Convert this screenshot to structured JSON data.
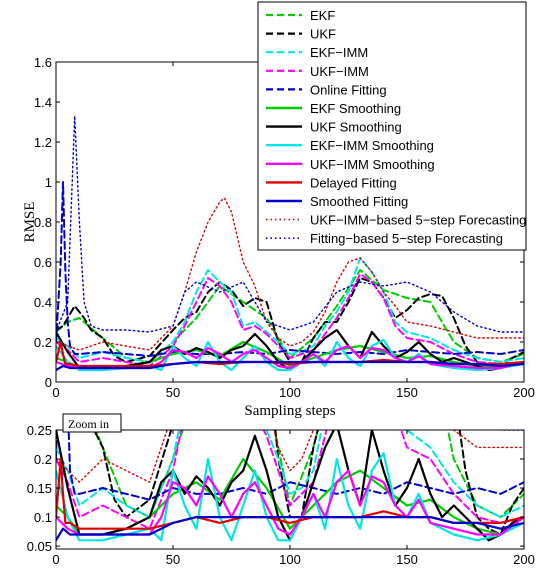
{
  "chart_data": [
    {
      "type": "line",
      "xlabel": "Sampling steps",
      "ylabel": "RMSE",
      "xlim": [
        0,
        200
      ],
      "ylim": [
        0,
        1.6
      ],
      "xticks": [
        "0",
        "50",
        "100",
        "150",
        "200"
      ],
      "yticks": [
        "0",
        "0.2",
        "0.4",
        "0.6",
        "0.8",
        "1",
        "1.2",
        "1.4",
        "1.6"
      ],
      "grid": false,
      "legend_position": "top-right",
      "series": [
        {
          "name": "EKF",
          "color": "#00cc00",
          "dash": "dashed",
          "x": [
            0,
            5,
            10,
            20,
            30,
            40,
            50,
            60,
            70,
            80,
            90,
            100,
            110,
            120,
            130,
            140,
            150,
            160,
            170,
            180,
            190,
            200
          ],
          "y": [
            0.25,
            0.3,
            0.32,
            0.22,
            0.12,
            0.1,
            0.2,
            0.32,
            0.48,
            0.4,
            0.32,
            0.12,
            0.22,
            0.38,
            0.56,
            0.46,
            0.42,
            0.4,
            0.2,
            0.12,
            0.1,
            0.14
          ]
        },
        {
          "name": "UKF",
          "color": "#000000",
          "dash": "dashed",
          "x": [
            0,
            3,
            8,
            12,
            15,
            20,
            25,
            30,
            40,
            50,
            55,
            60,
            65,
            70,
            75,
            80,
            85,
            90,
            95,
            100,
            105,
            110,
            115,
            120,
            125,
            130,
            135,
            140,
            145,
            150,
            155,
            160,
            165,
            170,
            175,
            180,
            185,
            190,
            195,
            200
          ],
          "y": [
            0.26,
            0.28,
            0.38,
            0.32,
            0.26,
            0.22,
            0.13,
            0.1,
            0.13,
            0.26,
            0.32,
            0.35,
            0.45,
            0.5,
            0.46,
            0.38,
            0.42,
            0.4,
            0.2,
            0.1,
            0.1,
            0.22,
            0.3,
            0.3,
            0.4,
            0.52,
            0.5,
            0.42,
            0.32,
            0.36,
            0.42,
            0.44,
            0.43,
            0.32,
            0.18,
            0.1,
            0.08,
            0.07,
            0.12,
            0.15
          ]
        },
        {
          "name": "EKF−IMM",
          "color": "#00e5e5",
          "dash": "dashed",
          "x": [
            0,
            5,
            10,
            20,
            30,
            40,
            50,
            55,
            60,
            65,
            70,
            75,
            80,
            85,
            90,
            95,
            100,
            105,
            110,
            115,
            120,
            125,
            130,
            135,
            140,
            145,
            150,
            160,
            170,
            180,
            190,
            200
          ],
          "y": [
            0.22,
            0.18,
            0.12,
            0.15,
            0.12,
            0.1,
            0.2,
            0.3,
            0.45,
            0.56,
            0.5,
            0.45,
            0.28,
            0.3,
            0.25,
            0.2,
            0.14,
            0.15,
            0.18,
            0.28,
            0.35,
            0.45,
            0.62,
            0.55,
            0.45,
            0.3,
            0.25,
            0.22,
            0.16,
            0.12,
            0.1,
            0.12
          ]
        },
        {
          "name": "UKF−IMM",
          "color": "#ff00ff",
          "dash": "dashed",
          "x": [
            0,
            5,
            10,
            20,
            30,
            40,
            50,
            55,
            60,
            65,
            70,
            75,
            80,
            85,
            90,
            95,
            100,
            105,
            110,
            115,
            120,
            125,
            130,
            135,
            140,
            145,
            150,
            160,
            170,
            180,
            190,
            200
          ],
          "y": [
            0.2,
            0.16,
            0.1,
            0.12,
            0.1,
            0.08,
            0.18,
            0.28,
            0.4,
            0.52,
            0.48,
            0.4,
            0.26,
            0.28,
            0.24,
            0.18,
            0.12,
            0.14,
            0.16,
            0.24,
            0.32,
            0.42,
            0.54,
            0.5,
            0.42,
            0.28,
            0.22,
            0.2,
            0.14,
            0.1,
            0.09,
            0.1
          ]
        },
        {
          "name": "Online Fitting",
          "color": "#0000cc",
          "dash": "dashed",
          "x": [
            0,
            2,
            3,
            4,
            5,
            6,
            8,
            10,
            20,
            30,
            40,
            50,
            60,
            70,
            80,
            90,
            100,
            110,
            120,
            130,
            140,
            150,
            160,
            170,
            180,
            190,
            200
          ],
          "y": [
            0.2,
            0.6,
            1.0,
            0.55,
            0.3,
            0.18,
            0.14,
            0.14,
            0.15,
            0.14,
            0.13,
            0.15,
            0.14,
            0.14,
            0.15,
            0.14,
            0.16,
            0.15,
            0.14,
            0.15,
            0.14,
            0.16,
            0.15,
            0.14,
            0.15,
            0.14,
            0.16
          ]
        },
        {
          "name": "EKF Smoothing",
          "color": "#00cc00",
          "dash": "solid",
          "x": [
            0,
            5,
            10,
            20,
            30,
            40,
            50,
            60,
            70,
            80,
            90,
            100,
            110,
            120,
            130,
            140,
            150,
            160,
            170,
            180,
            190,
            200
          ],
          "y": [
            0.12,
            0.1,
            0.07,
            0.07,
            0.08,
            0.1,
            0.14,
            0.16,
            0.13,
            0.2,
            0.15,
            0.08,
            0.12,
            0.16,
            0.18,
            0.15,
            0.12,
            0.13,
            0.1,
            0.08,
            0.07,
            0.1
          ]
        },
        {
          "name": "UKF Smoothing",
          "color": "#000000",
          "dash": "solid",
          "x": [
            0,
            5,
            10,
            20,
            30,
            40,
            45,
            50,
            55,
            60,
            65,
            70,
            75,
            80,
            85,
            90,
            95,
            100,
            105,
            110,
            115,
            120,
            125,
            130,
            135,
            140,
            145,
            150,
            155,
            160,
            165,
            170,
            175,
            180,
            185,
            190,
            195,
            200
          ],
          "y": [
            0.25,
            0.15,
            0.07,
            0.07,
            0.08,
            0.1,
            0.16,
            0.18,
            0.14,
            0.17,
            0.15,
            0.12,
            0.16,
            0.18,
            0.24,
            0.18,
            0.1,
            0.06,
            0.1,
            0.16,
            0.22,
            0.26,
            0.18,
            0.12,
            0.25,
            0.18,
            0.12,
            0.15,
            0.2,
            0.14,
            0.1,
            0.12,
            0.1,
            0.08,
            0.06,
            0.07,
            0.09,
            0.1
          ]
        },
        {
          "name": "EKF−IMM Smoothing",
          "color": "#00e5e5",
          "dash": "solid",
          "x": [
            0,
            5,
            10,
            20,
            30,
            40,
            45,
            50,
            55,
            60,
            65,
            70,
            75,
            80,
            85,
            90,
            95,
            100,
            105,
            110,
            115,
            120,
            125,
            130,
            135,
            140,
            145,
            150,
            155,
            160,
            170,
            180,
            190,
            200
          ],
          "y": [
            0.18,
            0.1,
            0.06,
            0.06,
            0.07,
            0.08,
            0.06,
            0.18,
            0.12,
            0.08,
            0.2,
            0.1,
            0.06,
            0.12,
            0.18,
            0.1,
            0.06,
            0.06,
            0.1,
            0.14,
            0.08,
            0.2,
            0.12,
            0.08,
            0.18,
            0.21,
            0.12,
            0.1,
            0.14,
            0.09,
            0.07,
            0.06,
            0.07,
            0.09
          ]
        },
        {
          "name": "UKF−IMM Smoothing",
          "color": "#ff00ff",
          "dash": "solid",
          "x": [
            0,
            5,
            10,
            20,
            30,
            40,
            45,
            50,
            55,
            60,
            65,
            70,
            75,
            80,
            85,
            90,
            95,
            100,
            105,
            110,
            115,
            120,
            125,
            130,
            135,
            140,
            145,
            150,
            155,
            160,
            170,
            180,
            190,
            200
          ],
          "y": [
            0.1,
            0.08,
            0.07,
            0.07,
            0.07,
            0.07,
            0.1,
            0.16,
            0.15,
            0.12,
            0.17,
            0.14,
            0.1,
            0.14,
            0.16,
            0.12,
            0.08,
            0.07,
            0.1,
            0.14,
            0.1,
            0.16,
            0.18,
            0.12,
            0.17,
            0.16,
            0.12,
            0.1,
            0.13,
            0.09,
            0.08,
            0.07,
            0.07,
            0.1
          ]
        },
        {
          "name": "Delayed Fitting",
          "color": "#e00000",
          "dash": "solid",
          "x": [
            0,
            2,
            3,
            4,
            6,
            10,
            20,
            30,
            40,
            50,
            60,
            70,
            80,
            90,
            100,
            110,
            120,
            130,
            140,
            150,
            160,
            170,
            180,
            190,
            200
          ],
          "y": [
            0.1,
            0.2,
            0.14,
            0.09,
            0.09,
            0.08,
            0.08,
            0.08,
            0.08,
            0.09,
            0.1,
            0.09,
            0.1,
            0.1,
            0.09,
            0.1,
            0.1,
            0.1,
            0.11,
            0.1,
            0.1,
            0.09,
            0.09,
            0.09,
            0.1
          ]
        },
        {
          "name": "Smoothed Fitting",
          "color": "#0000cc",
          "dash": "solid",
          "x": [
            0,
            3,
            6,
            10,
            20,
            30,
            40,
            50,
            60,
            70,
            80,
            90,
            100,
            110,
            120,
            130,
            140,
            150,
            160,
            170,
            180,
            190,
            200
          ],
          "y": [
            0.06,
            0.08,
            0.07,
            0.07,
            0.07,
            0.07,
            0.07,
            0.09,
            0.1,
            0.1,
            0.1,
            0.1,
            0.1,
            0.1,
            0.1,
            0.1,
            0.1,
            0.1,
            0.1,
            0.09,
            0.09,
            0.08,
            0.09
          ]
        },
        {
          "name": "UKF−IMM−based 5−step Forecasting",
          "color": "#e00000",
          "dash": "dotted",
          "x": [
            0,
            5,
            10,
            20,
            30,
            40,
            50,
            55,
            60,
            65,
            70,
            72,
            75,
            80,
            85,
            90,
            95,
            100,
            105,
            110,
            115,
            120,
            125,
            130,
            135,
            140,
            145,
            150,
            160,
            170,
            180,
            190,
            200
          ],
          "y": [
            0.2,
            0.18,
            0.16,
            0.2,
            0.18,
            0.16,
            0.28,
            0.45,
            0.65,
            0.8,
            0.9,
            0.92,
            0.85,
            0.6,
            0.48,
            0.3,
            0.22,
            0.18,
            0.2,
            0.25,
            0.35,
            0.5,
            0.6,
            0.62,
            0.55,
            0.45,
            0.38,
            0.3,
            0.28,
            0.25,
            0.22,
            0.22,
            0.22
          ]
        },
        {
          "name": "Fitting−based 5−step Forecasting",
          "color": "#0000cc",
          "dash": "dotted",
          "x": [
            0,
            5,
            8,
            10,
            12,
            15,
            20,
            30,
            40,
            50,
            55,
            60,
            70,
            80,
            90,
            100,
            110,
            120,
            130,
            140,
            150,
            160,
            170,
            180,
            190,
            200
          ],
          "y": [
            0.25,
            0.4,
            1.33,
            0.8,
            0.4,
            0.28,
            0.26,
            0.26,
            0.25,
            0.28,
            0.45,
            0.5,
            0.45,
            0.5,
            0.3,
            0.26,
            0.3,
            0.45,
            0.5,
            0.48,
            0.5,
            0.45,
            0.35,
            0.28,
            0.25,
            0.25
          ]
        }
      ]
    },
    {
      "type": "line",
      "annotation": "Zoom in",
      "xlim": [
        0,
        200
      ],
      "ylim": [
        0.045,
        0.25
      ],
      "xticks": [
        "0",
        "50",
        "100",
        "150",
        "200"
      ],
      "yticks": [
        "0.05",
        "0.1",
        "0.15",
        "0.2",
        "0.25"
      ],
      "grid": false,
      "series_same_as_main": true
    }
  ]
}
